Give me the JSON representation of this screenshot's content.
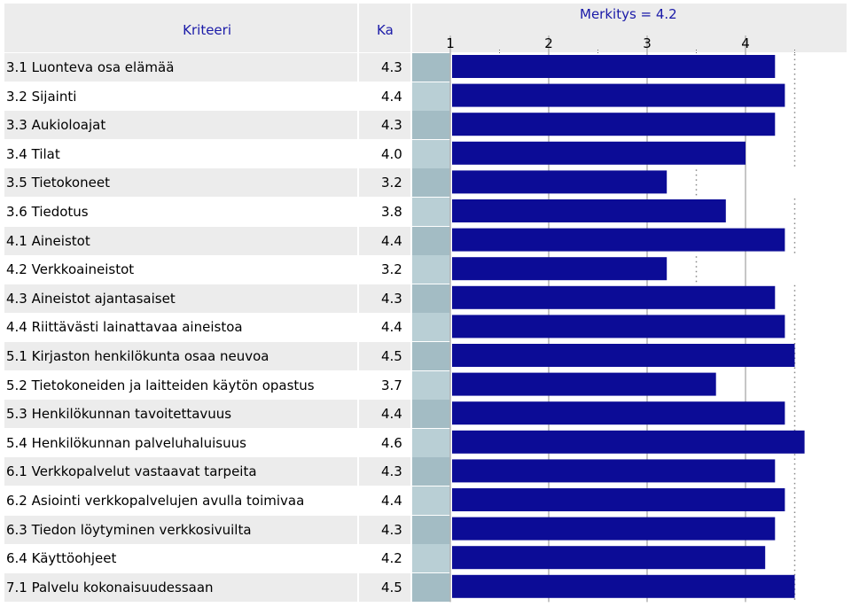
{
  "chart_data": {
    "type": "bar",
    "orientation": "horizontal",
    "column_headers": {
      "criterion": "Kriteeri",
      "average": "Ka"
    },
    "reference": {
      "label": "Merkitys",
      "value": 4.2
    },
    "x_ticks": [
      "1",
      "2",
      "3",
      "4"
    ],
    "xlim": [
      1,
      5
    ],
    "rows": [
      {
        "label": "3.1 Luonteva osa elämää",
        "value": 4.3,
        "value_text": "4.3",
        "importance": 4.5
      },
      {
        "label": "3.2 Sijainti",
        "value": 4.4,
        "value_text": "4.4",
        "importance": 4.5
      },
      {
        "label": "3.3 Aukioloajat",
        "value": 4.3,
        "value_text": "4.3",
        "importance": 4.5
      },
      {
        "label": "3.4 Tilat",
        "value": 4.0,
        "value_text": "4.0",
        "importance": 4.5
      },
      {
        "label": "3.5 Tietokoneet",
        "value": 3.2,
        "value_text": "3.2",
        "importance": 3.5
      },
      {
        "label": "3.6 Tiedotus",
        "value": 3.8,
        "value_text": "3.8",
        "importance": 4.5
      },
      {
        "label": "4.1 Aineistot",
        "value": 4.4,
        "value_text": "4.4",
        "importance": 4.5
      },
      {
        "label": "4.2 Verkkoaineistot",
        "value": 3.2,
        "value_text": "3.2",
        "importance": 3.5
      },
      {
        "label": "4.3 Aineistot ajantasaiset",
        "value": 4.3,
        "value_text": "4.3",
        "importance": 4.5
      },
      {
        "label": "4.4 Riittävästi lainattavaa aineistoa",
        "value": 4.4,
        "value_text": "4.4",
        "importance": 4.5
      },
      {
        "label": "5.1 Kirjaston henkilökunta osaa neuvoa",
        "value": 4.5,
        "value_text": "4.5",
        "importance": 4.5
      },
      {
        "label": "5.2 Tietokoneiden ja laitteiden käytön opastus",
        "value": 3.7,
        "value_text": "3.7",
        "importance": 4.5
      },
      {
        "label": "5.3 Henkilökunnan tavoitettavuus",
        "value": 4.4,
        "value_text": "4.4",
        "importance": 4.5
      },
      {
        "label": "5.4 Henkilökunnan palveluhaluisuus",
        "value": 4.6,
        "value_text": "4.6",
        "importance": 4.5
      },
      {
        "label": "6.1 Verkkopalvelut vastaavat tarpeita",
        "value": 4.3,
        "value_text": "4.3",
        "importance": 4.5
      },
      {
        "label": "6.2 Asiointi verkkopalvelujen avulla toimivaa",
        "value": 4.4,
        "value_text": "4.4",
        "importance": 4.5
      },
      {
        "label": "6.3 Tiedon löytyminen verkkosivuilta",
        "value": 4.3,
        "value_text": "4.3",
        "importance": 4.5
      },
      {
        "label": "6.4 Käyttöohjeet",
        "value": 4.2,
        "value_text": "4.2",
        "importance": 4.5
      },
      {
        "label": "7.1 Palvelu kokonaisuudessaan",
        "value": 4.5,
        "value_text": "4.5",
        "importance": 4.5
      }
    ],
    "colors": {
      "bar": "#0c0c96",
      "header_text": "#1a1aa8",
      "grid": "#b4b4b4",
      "marker": "#888888"
    }
  }
}
